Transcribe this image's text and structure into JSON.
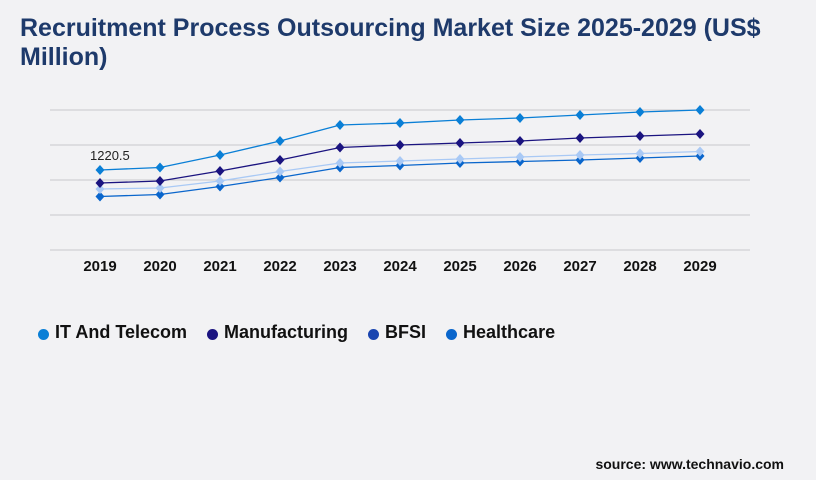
{
  "chart_data": {
    "type": "line",
    "title": "Recruitment Process Outsourcing Market Size 2025-2029 (US$ Million)",
    "x": [
      "2019",
      "2020",
      "2021",
      "2022",
      "2023",
      "2024",
      "2025",
      "2026",
      "2027",
      "2028",
      "2029"
    ],
    "ylim": [
      0,
      2136
    ],
    "grid": true,
    "legend_position": "bottom-left",
    "annotations": [
      {
        "series": "IT And Telecom",
        "x": "2019",
        "text": "1220.5"
      }
    ],
    "series": [
      {
        "name": "IT And Telecom",
        "color": "#0a7fd6",
        "legend_color": "#0a7fd6",
        "values": [
          1220.5,
          1259,
          1449,
          1663,
          1907,
          1937,
          1983,
          2014,
          2060,
          2105,
          2136
        ]
      },
      {
        "name": "Manufacturing",
        "color": "#1b1480",
        "legend_color": "#1b1480",
        "values": [
          1022,
          1053,
          1205,
          1373,
          1564,
          1602,
          1632,
          1663,
          1709,
          1739,
          1770
        ]
      },
      {
        "name": "BFSI",
        "color": "#a9c9f5",
        "legend_color": "#1a45b0",
        "values": [
          931,
          946,
          1053,
          1198,
          1327,
          1358,
          1388,
          1419,
          1449,
          1472,
          1503
        ]
      },
      {
        "name": "Healthcare",
        "color": "#0a66cc",
        "legend_color": "#0a66cc",
        "values": [
          816,
          847,
          969,
          1106,
          1259,
          1289,
          1327,
          1350,
          1373,
          1404,
          1434
        ]
      }
    ]
  },
  "source": "source: www.technavio.com"
}
